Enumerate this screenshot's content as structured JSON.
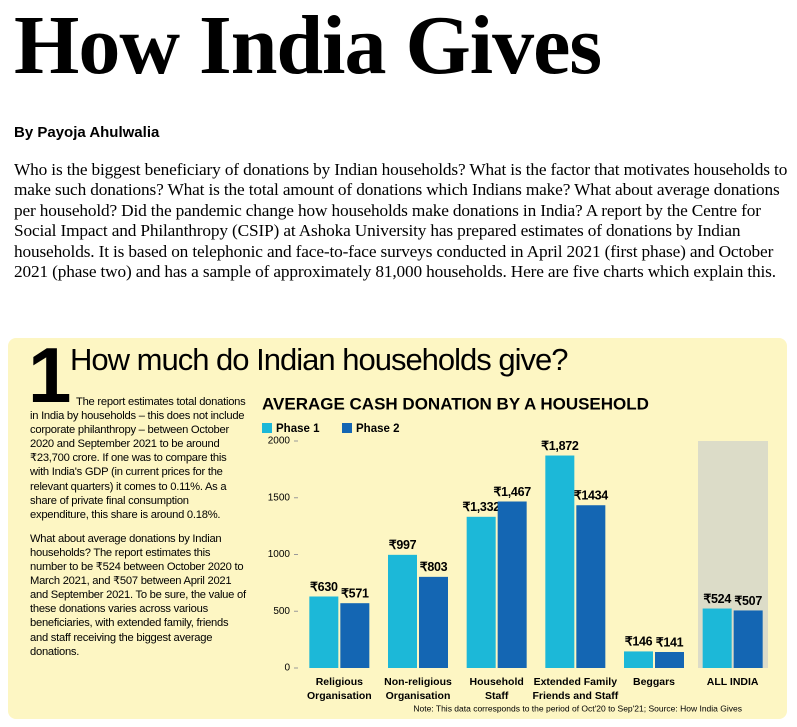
{
  "header": {
    "title": "How India Gives",
    "byline": "By Payoja Ahulwalia"
  },
  "intro": "Who is the biggest beneficiary of donations by Indian households? What is the factor that motivates households to make such donations? What is the total amount of donations which Indians make? What about average donations per household? Did the pandemic change how households make donations in India? A report by the Centre for Social Impact and Philanthropy (CSIP) at Ashoka University has prepared estimates of donations by Indian households. It is based on telephonic and face-to-face surveys conducted in April 2021 (first phase) and October 2021 (phase two) and has a sample of approximately 81,000 households. Here are five charts which explain this.",
  "section": {
    "number": "1",
    "heading": "How much do Indian households give?",
    "paragraphs": [
      "The report estimates total donations in India by households – this does not include corporate philanthropy – between October 2020 and September 2021 to be around ₹23,700 crore. If one was to compare this with India's GDP (in current prices for the relevant quarters) it comes to 0.11%. As a share of private final consumption expenditure, this share is around 0.18%.",
      "What about average donations by Indian households? The report estimates this number to be ₹524 between October 2020 to March 2021, and ₹507 between April 2021 and September 2021. To be sure, the value of these donations varies across various beneficiaries, with extended family, friends and staff receiving the biggest average donations."
    ]
  },
  "chart_data": {
    "type": "bar",
    "title": "AVERAGE CASH DONATION BY A HOUSEHOLD",
    "categories": [
      "Religious\nOrganisation",
      "Non-religious\nOrganisation",
      "Household\nStaff",
      "Extended Family\nFriends and Staff",
      "Beggars",
      "ALL INDIA"
    ],
    "series": [
      {
        "name": "Phase 1",
        "color": "#1cb8d8",
        "values": [
          630,
          997,
          1332,
          1872,
          146,
          524
        ],
        "value_labels": [
          "₹630",
          "₹997",
          "₹1,332",
          "₹1,872",
          "₹146",
          "₹524"
        ]
      },
      {
        "name": "Phase 2",
        "color": "#1466b3",
        "values": [
          571,
          803,
          1467,
          1434,
          141,
          507
        ],
        "value_labels": [
          "₹571",
          "₹803",
          "₹1,467",
          "₹1434",
          "₹141",
          "₹507"
        ]
      }
    ],
    "ylim": [
      0,
      2000
    ],
    "yticks": [
      0,
      500,
      1000,
      1500,
      2000
    ],
    "note": "Note: This data corresponds to the period of Oct'20 to Sep'21;  Source: How India Gives"
  }
}
